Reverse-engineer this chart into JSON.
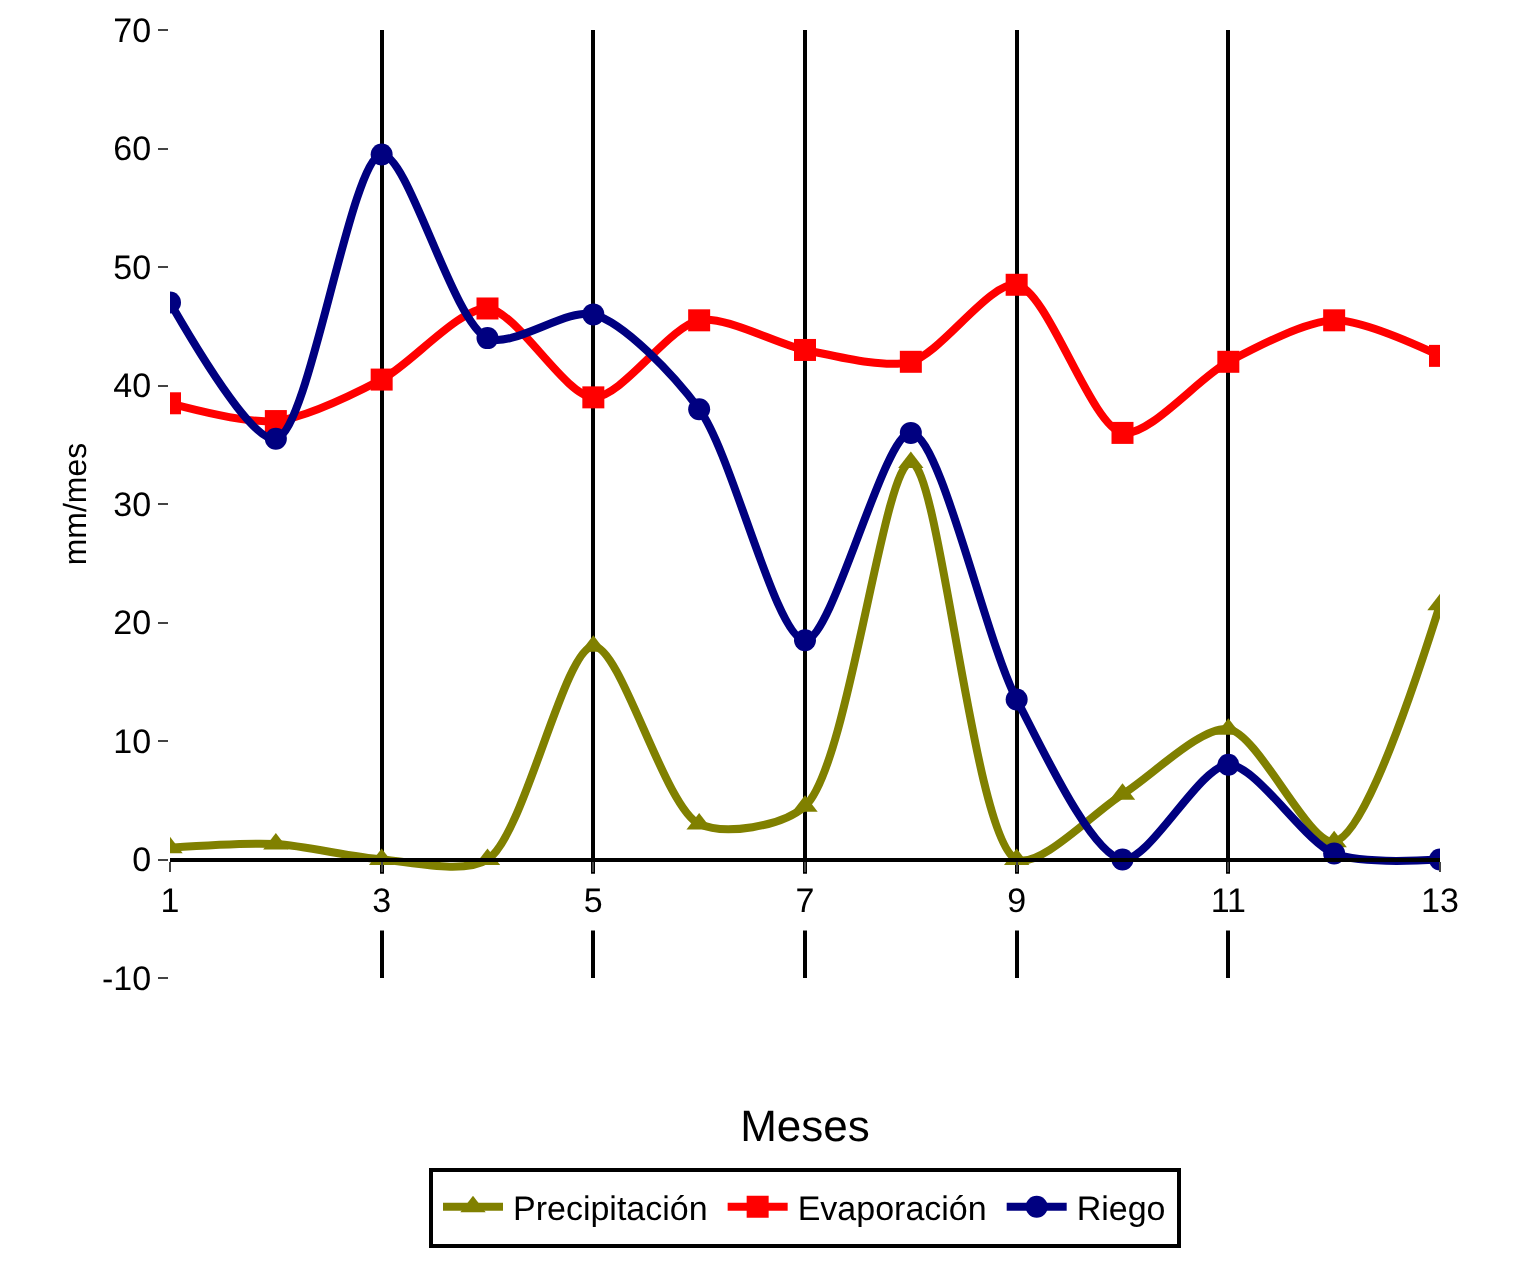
{
  "chart_data": {
    "type": "line",
    "xlabel": "Meses",
    "ylabel": "mm/mes",
    "x": [
      1,
      2,
      3,
      4,
      5,
      6,
      7,
      8,
      9,
      10,
      11,
      12,
      13
    ],
    "xlim": [
      1,
      13
    ],
    "xticks": [
      1,
      3,
      5,
      7,
      9,
      11,
      13
    ],
    "ylim": [
      -10,
      70
    ],
    "yticks": [
      -10,
      0,
      10,
      20,
      30,
      40,
      50,
      60,
      70
    ],
    "grid": "x",
    "legend": "bottom",
    "series": [
      {
        "name": "Precipitación",
        "color": "#808000",
        "marker": "triangle",
        "values": [
          1,
          1.3,
          0,
          0,
          18,
          3,
          4.5,
          33.5,
          0,
          5.5,
          11,
          1.5,
          21.5
        ]
      },
      {
        "name": "Evaporación",
        "color": "#ff0000",
        "marker": "square",
        "values": [
          38.5,
          37,
          40.5,
          46.5,
          39,
          45.5,
          43,
          42,
          48.5,
          36,
          42,
          45.5,
          42.5
        ]
      },
      {
        "name": "Riego",
        "color": "#000080",
        "marker": "circle",
        "values": [
          47,
          35.5,
          59.5,
          44,
          46,
          38,
          18.5,
          36,
          13.5,
          0,
          8,
          0.5,
          0
        ]
      }
    ]
  }
}
